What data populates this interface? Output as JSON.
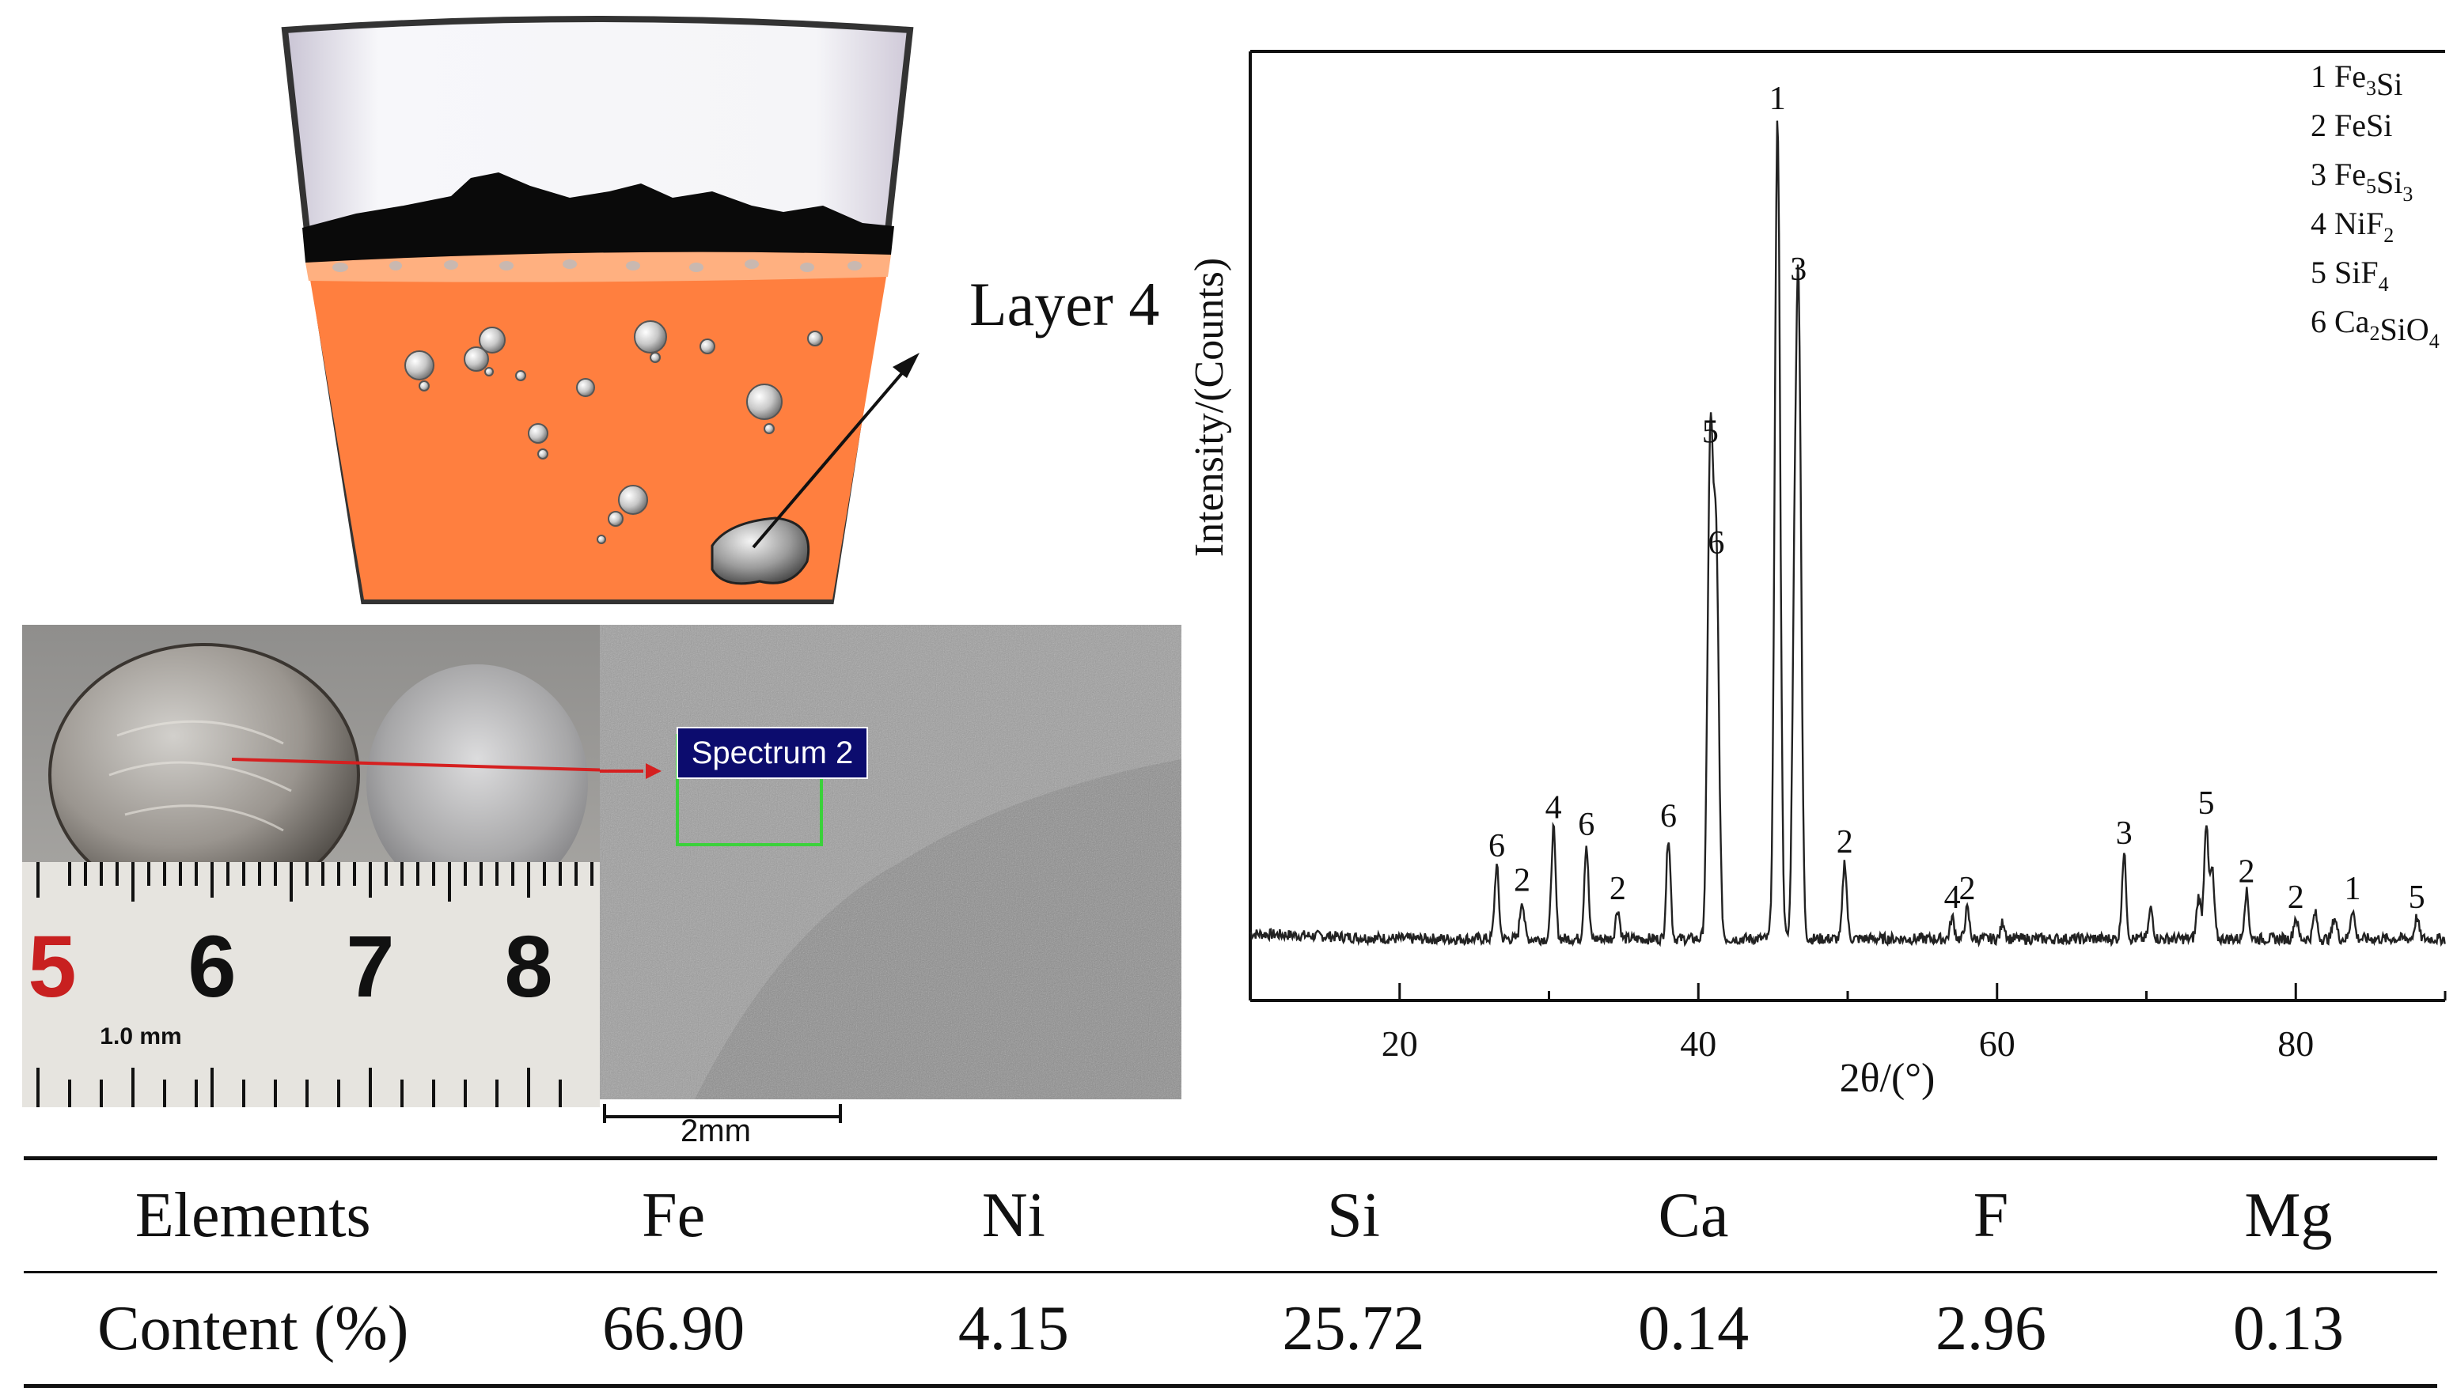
{
  "figure": {
    "layer_label": "Layer 4",
    "spectrum_label": "Spectrum 2",
    "scale_bar_label": "2mm",
    "ruler": {
      "numbers": [
        "5",
        "6",
        "7",
        "8"
      ],
      "unit_label": "1.0 mm"
    }
  },
  "chart_data": {
    "type": "line",
    "xlabel": "2θ/(°)",
    "ylabel": "Intensity/(Counts)",
    "xlim": [
      10,
      90
    ],
    "ylim": [
      0,
      100
    ],
    "xticks": [
      20,
      40,
      60,
      80
    ],
    "legend_position": "top-right",
    "legend": [
      {
        "num": "1",
        "base": "Fe",
        "sub1": "3",
        "mid": "Si",
        "sub2": ""
      },
      {
        "num": "2",
        "base": "FeSi",
        "sub1": "",
        "mid": "",
        "sub2": ""
      },
      {
        "num": "3",
        "base": "Fe",
        "sub1": "5",
        "mid": "Si",
        "sub2": "3"
      },
      {
        "num": "4",
        "base": "NiF",
        "sub1": "2",
        "mid": "",
        "sub2": ""
      },
      {
        "num": "5",
        "base": "SiF",
        "sub1": "4",
        "mid": "",
        "sub2": ""
      },
      {
        "num": "6",
        "base": "Ca",
        "sub1": "2",
        "mid": "SiO",
        "sub2": "4"
      }
    ],
    "peaks": [
      {
        "x": 26.5,
        "y": 8.5,
        "label": "6"
      },
      {
        "x": 28.2,
        "y": 4.5,
        "label": "2"
      },
      {
        "x": 30.3,
        "y": 13,
        "label": "4"
      },
      {
        "x": 32.5,
        "y": 11,
        "label": "6"
      },
      {
        "x": 34.6,
        "y": 3.5,
        "label": "2"
      },
      {
        "x": 38.0,
        "y": 12,
        "label": "6"
      },
      {
        "x": 40.8,
        "y": 57,
        "label": "5"
      },
      {
        "x": 41.2,
        "y": 44,
        "label": "6"
      },
      {
        "x": 45.3,
        "y": 96,
        "label": "1"
      },
      {
        "x": 46.4,
        "y": 26,
        "label": ""
      },
      {
        "x": 46.7,
        "y": 76,
        "label": "3"
      },
      {
        "x": 49.8,
        "y": 9,
        "label": "2"
      },
      {
        "x": 57.0,
        "y": 2.5,
        "label": "4"
      },
      {
        "x": 58.0,
        "y": 3.5,
        "label": "2"
      },
      {
        "x": 60.4,
        "y": 2,
        "label": ""
      },
      {
        "x": 68.5,
        "y": 10,
        "label": "3"
      },
      {
        "x": 70.3,
        "y": 3.5,
        "label": ""
      },
      {
        "x": 73.5,
        "y": 5,
        "label": ""
      },
      {
        "x": 74.0,
        "y": 13.5,
        "label": "5"
      },
      {
        "x": 74.4,
        "y": 8,
        "label": ""
      },
      {
        "x": 76.7,
        "y": 5.5,
        "label": "2"
      },
      {
        "x": 80.0,
        "y": 2.5,
        "label": "2"
      },
      {
        "x": 81.3,
        "y": 3,
        "label": ""
      },
      {
        "x": 82.6,
        "y": 2.5,
        "label": ""
      },
      {
        "x": 83.8,
        "y": 3.5,
        "label": "1"
      },
      {
        "x": 88.1,
        "y": 2.5,
        "label": "5"
      }
    ],
    "label_offsets_note": ""
  },
  "table": {
    "header": [
      "Elements",
      "Fe",
      "Ni",
      "Si",
      "Ca",
      "F",
      "Mg"
    ],
    "row": [
      "Content (%)",
      "66.90",
      "4.15",
      "25.72",
      "0.14",
      "2.96",
      "0.13"
    ]
  }
}
